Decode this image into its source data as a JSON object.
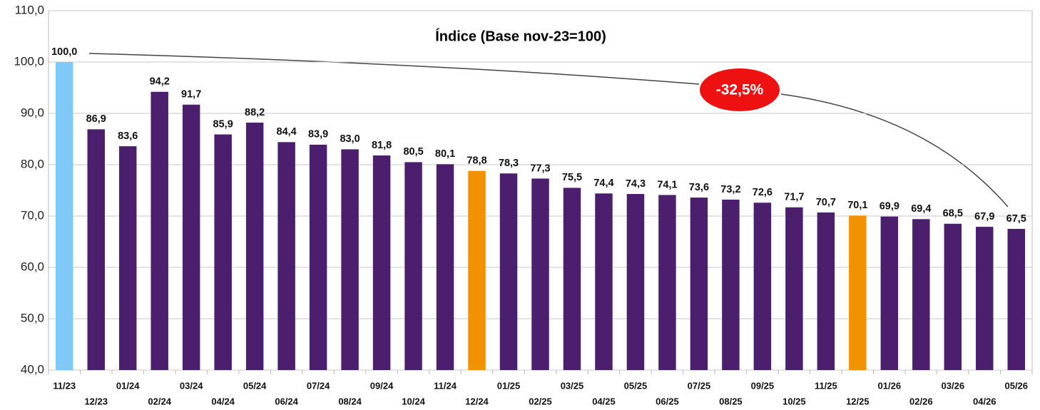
{
  "chart_data": {
    "type": "bar",
    "title": "Índice (Base nov-23=100)",
    "categories": [
      "11/23",
      "12/23",
      "01/24",
      "02/24",
      "03/24",
      "04/24",
      "05/24",
      "06/24",
      "07/24",
      "08/24",
      "09/24",
      "10/24",
      "11/24",
      "12/24",
      "01/25",
      "02/25",
      "03/25",
      "04/25",
      "05/25",
      "06/25",
      "07/25",
      "08/25",
      "09/25",
      "10/25",
      "11/25",
      "12/25",
      "01/26",
      "02/26",
      "03/26",
      "04/26",
      "05/26"
    ],
    "values": [
      100.0,
      86.9,
      83.6,
      94.2,
      91.7,
      85.9,
      88.2,
      84.4,
      83.9,
      83.0,
      81.8,
      80.5,
      80.1,
      78.8,
      78.3,
      77.3,
      75.5,
      74.4,
      74.3,
      74.1,
      73.6,
      73.2,
      72.6,
      71.7,
      70.7,
      70.1,
      69.9,
      69.4,
      68.5,
      67.9,
      67.5
    ],
    "value_labels": [
      "100,0",
      "86,9",
      "83,6",
      "94,2",
      "91,7",
      "85,9",
      "88,2",
      "84,4",
      "83,9",
      "83,0",
      "81,8",
      "80,5",
      "80,1",
      "78,8",
      "78,3",
      "77,3",
      "75,5",
      "74,4",
      "74,3",
      "74,1",
      "73,6",
      "73,2",
      "72,6",
      "71,7",
      "70,7",
      "70,1",
      "69,9",
      "69,4",
      "68,5",
      "67,9",
      "67,5"
    ],
    "colors": [
      "#80c8f8",
      "#4b1e6e",
      "#4b1e6e",
      "#4b1e6e",
      "#4b1e6e",
      "#4b1e6e",
      "#4b1e6e",
      "#4b1e6e",
      "#4b1e6e",
      "#4b1e6e",
      "#4b1e6e",
      "#4b1e6e",
      "#4b1e6e",
      "#f39200",
      "#4b1e6e",
      "#4b1e6e",
      "#4b1e6e",
      "#4b1e6e",
      "#4b1e6e",
      "#4b1e6e",
      "#4b1e6e",
      "#4b1e6e",
      "#4b1e6e",
      "#4b1e6e",
      "#4b1e6e",
      "#f39200",
      "#4b1e6e",
      "#4b1e6e",
      "#4b1e6e",
      "#4b1e6e",
      "#4b1e6e"
    ],
    "ylim": [
      40,
      110
    ],
    "yticks": [
      {
        "value": 40,
        "label": "40,0"
      },
      {
        "value": 50,
        "label": "50,0"
      },
      {
        "value": 60,
        "label": "60,0"
      },
      {
        "value": 70,
        "label": "70,0"
      },
      {
        "value": 80,
        "label": "80,0"
      },
      {
        "value": 90,
        "label": "90,0"
      },
      {
        "value": 100,
        "label": "100,0"
      },
      {
        "value": 110,
        "label": "110,0"
      }
    ],
    "grid": true,
    "annotation": "-32,5%"
  }
}
